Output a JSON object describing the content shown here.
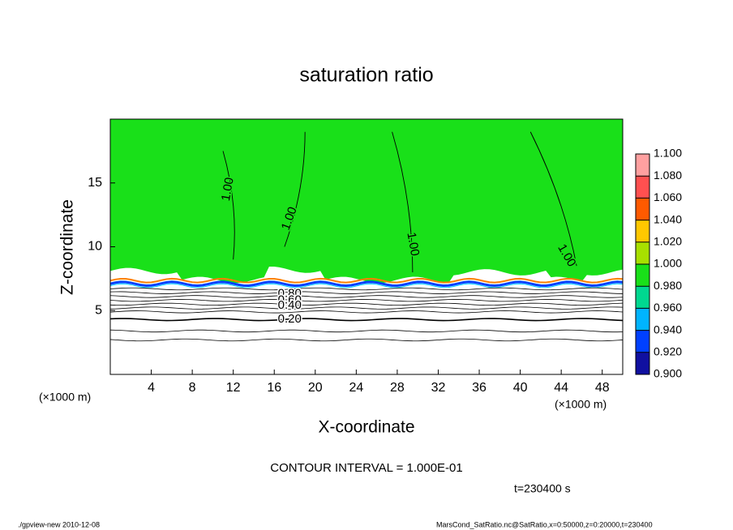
{
  "chart_data": {
    "type": "contour",
    "title": "saturation ratio",
    "x_label": "X-coordinate",
    "y_label": "Z-coordinate",
    "x_unit_left": "(×1000 m)",
    "x_unit_right": "(×1000 m)",
    "xlim": [
      0,
      50
    ],
    "xticks": [
      4,
      8,
      12,
      16,
      20,
      24,
      28,
      32,
      36,
      40,
      44,
      48
    ],
    "ylim": [
      0,
      20
    ],
    "yticks": [
      5,
      10,
      15
    ],
    "fill_color": "#19e019",
    "colorbar": {
      "ticks": [
        {
          "value": 0.9,
          "label": "0.900"
        },
        {
          "value": 0.92,
          "label": "0.920"
        },
        {
          "value": 0.94,
          "label": "0.940"
        },
        {
          "value": 0.96,
          "label": "0.960"
        },
        {
          "value": 0.98,
          "label": "0.980"
        },
        {
          "value": 1.0,
          "label": "1.000"
        },
        {
          "value": 1.02,
          "label": "1.020"
        },
        {
          "value": 1.04,
          "label": "1.040"
        },
        {
          "value": 1.06,
          "label": "1.060"
        },
        {
          "value": 1.08,
          "label": "1.080"
        },
        {
          "value": 1.1,
          "label": "1.100"
        }
      ],
      "colors": [
        "#1010a0",
        "#0040ff",
        "#00b4ff",
        "#00d890",
        "#19e019",
        "#a8e000",
        "#ffc800",
        "#ff5a00",
        "#ff5050",
        "#ffa0a0"
      ]
    },
    "contour_labels": [
      {
        "value": 1.0,
        "label": "1.00"
      },
      {
        "value": 1.0,
        "label": "1.00"
      },
      {
        "value": 1.0,
        "label": "1.00"
      },
      {
        "value": 1.0,
        "label": "1.00"
      },
      {
        "value": 0.8,
        "label": "0.80"
      },
      {
        "value": 0.6,
        "label": "0.60"
      },
      {
        "value": 0.4,
        "label": "0.40"
      },
      {
        "value": 0.2,
        "label": "0.20"
      }
    ],
    "contour_interval": "CONTOUR INTERVAL = 1.000E-01",
    "time_label": "t=230400 s",
    "footer_left": "./gpview-new  2010-12-08",
    "footer_right": "MarsCond_SatRatio.nc@SatRatio,x=0:50000,z=0:20000,t=230400"
  }
}
